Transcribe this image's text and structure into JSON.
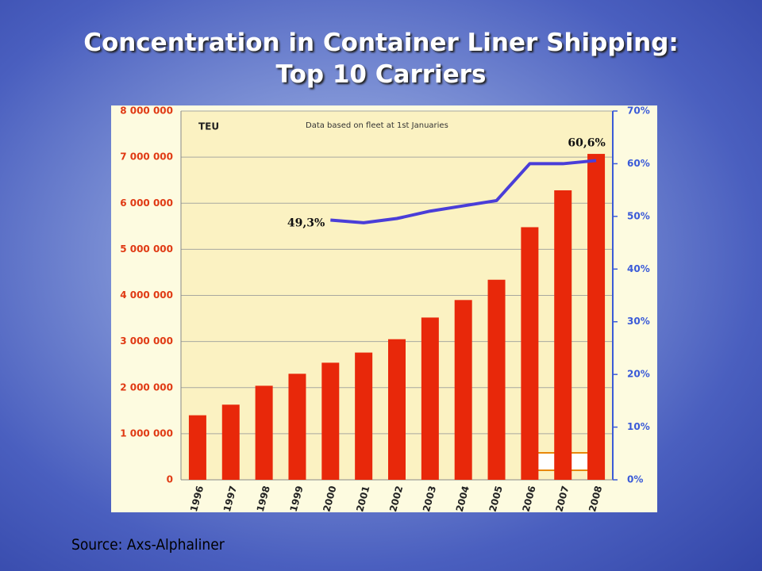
{
  "slide": {
    "title_lines": [
      "Concentration in Container Liner Shipping:",
      "Top 10 Carriers"
    ],
    "source": "Source: Axs-Alphaliner"
  },
  "chart_data": {
    "type": "bar_line",
    "annotations": [
      "TEU",
      "Data based on fleet at 1st Januaries"
    ],
    "categories": [
      "1996",
      "1997",
      "1998",
      "1999",
      "2000",
      "2001",
      "2002",
      "2003",
      "2004",
      "2005",
      "2006",
      "2007",
      "2008"
    ],
    "series": [
      {
        "type": "bar",
        "color": "#e8280a",
        "values": [
          1400000,
          1630000,
          2040000,
          2300000,
          2540000,
          2760000,
          3050000,
          3520000,
          3900000,
          4340000,
          5480000,
          6280000,
          7070000
        ]
      },
      {
        "type": "line",
        "axis": "y2",
        "color": "#4a3ed8",
        "values": [
          null,
          null,
          null,
          null,
          49.3,
          48.8,
          49.6,
          51,
          52,
          53,
          60,
          60,
          60.6
        ],
        "value_labels": [
          null,
          null,
          null,
          null,
          "49,3%",
          null,
          null,
          null,
          null,
          null,
          null,
          null,
          "60,6%"
        ]
      }
    ],
    "ylim": [
      0,
      8000000
    ],
    "yticks": [
      0,
      {
        "value": 1000000,
        "label": "1 000 000"
      },
      {
        "value": 2000000,
        "label": "2 000 000"
      },
      {
        "value": 3000000,
        "label": "3 000 000"
      },
      {
        "value": 4000000,
        "label": "4 000 000"
      },
      {
        "value": 5000000,
        "label": "5 000 000"
      },
      {
        "value": 6000000,
        "label": "6 000 000"
      },
      {
        "value": 7000000,
        "label": "7 000 000"
      },
      {
        "value": 8000000,
        "label": "8 000 000"
      }
    ],
    "y2lim": [
      0,
      70
    ],
    "y2ticks": [
      {
        "value": 0,
        "label": "0%"
      },
      {
        "value": 10,
        "label": "10%"
      },
      {
        "value": 20,
        "label": "20%"
      },
      {
        "value": 30,
        "label": "30%"
      },
      {
        "value": 40,
        "label": "40%"
      },
      {
        "value": 50,
        "label": "50%"
      },
      {
        "value": 60,
        "label": "60%"
      },
      {
        "value": 70,
        "label": "70%"
      }
    ],
    "grid": true
  }
}
